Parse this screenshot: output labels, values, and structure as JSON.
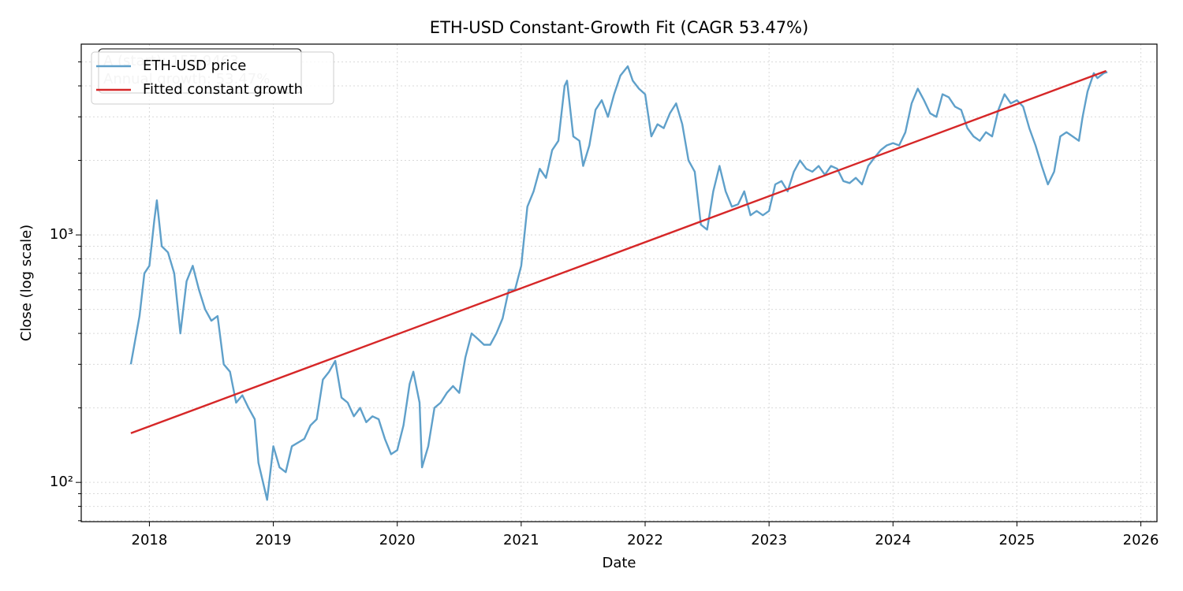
{
  "chart_data": {
    "type": "line",
    "title": "ETH-USD Constant-Growth Fit (CAGR 53.47%)",
    "xlabel": "Date",
    "ylabel": "Close (log scale)",
    "ylog": true,
    "grid": true,
    "legend": "upper left",
    "xlim": [
      2017.45,
      2026.13
    ],
    "xticks": [
      2018,
      2019,
      2020,
      2021,
      2022,
      2023,
      2024,
      2025,
      2026
    ],
    "ylim": [
      69.4,
      5900
    ],
    "yticks": [
      {
        "value": 100,
        "label": "10²"
      },
      {
        "value": 1000,
        "label": "10³"
      }
    ],
    "yminorticks": [
      70,
      80,
      90,
      200,
      300,
      400,
      500,
      600,
      700,
      800,
      900,
      2000,
      3000,
      4000,
      5000
    ],
    "annotations": [
      "A (start): 157.9463",
      "Annual growth: 53.47%"
    ],
    "series": [
      {
        "name": "ETH-USD price",
        "color": "#5fa0ca",
        "x": [
          2017.85,
          2017.92,
          2017.96,
          2018.0,
          2018.04,
          2018.06,
          2018.1,
          2018.15,
          2018.2,
          2018.25,
          2018.3,
          2018.35,
          2018.4,
          2018.45,
          2018.5,
          2018.55,
          2018.6,
          2018.65,
          2018.7,
          2018.75,
          2018.8,
          2018.85,
          2018.88,
          2018.95,
          2019.0,
          2019.05,
          2019.1,
          2019.15,
          2019.25,
          2019.3,
          2019.35,
          2019.4,
          2019.45,
          2019.5,
          2019.55,
          2019.6,
          2019.65,
          2019.7,
          2019.75,
          2019.8,
          2019.85,
          2019.9,
          2019.95,
          2020.0,
          2020.05,
          2020.1,
          2020.13,
          2020.18,
          2020.2,
          2020.25,
          2020.3,
          2020.35,
          2020.4,
          2020.45,
          2020.5,
          2020.55,
          2020.6,
          2020.65,
          2020.7,
          2020.75,
          2020.8,
          2020.85,
          2020.9,
          2020.95,
          2021.0,
          2021.05,
          2021.1,
          2021.15,
          2021.2,
          2021.25,
          2021.3,
          2021.35,
          2021.37,
          2021.42,
          2021.47,
          2021.5,
          2021.55,
          2021.6,
          2021.65,
          2021.7,
          2021.75,
          2021.8,
          2021.86,
          2021.9,
          2021.95,
          2022.0,
          2022.05,
          2022.1,
          2022.15,
          2022.2,
          2022.25,
          2022.3,
          2022.35,
          2022.4,
          2022.45,
          2022.5,
          2022.55,
          2022.6,
          2022.65,
          2022.7,
          2022.75,
          2022.8,
          2022.85,
          2022.9,
          2022.95,
          2023.0,
          2023.05,
          2023.1,
          2023.15,
          2023.2,
          2023.25,
          2023.3,
          2023.35,
          2023.4,
          2023.45,
          2023.5,
          2023.55,
          2023.6,
          2023.65,
          2023.7,
          2023.75,
          2023.8,
          2023.85,
          2023.9,
          2023.95,
          2024.0,
          2024.05,
          2024.1,
          2024.15,
          2024.2,
          2024.25,
          2024.3,
          2024.35,
          2024.4,
          2024.45,
          2024.5,
          2024.55,
          2024.6,
          2024.65,
          2024.7,
          2024.75,
          2024.8,
          2024.85,
          2024.9,
          2024.95,
          2025.0,
          2025.05,
          2025.1,
          2025.15,
          2025.2,
          2025.25,
          2025.3,
          2025.35,
          2025.4,
          2025.45,
          2025.5,
          2025.53,
          2025.57,
          2025.62,
          2025.65,
          2025.7,
          2025.73
        ],
        "values": [
          300,
          470,
          700,
          750,
          1150,
          1380,
          900,
          850,
          700,
          400,
          650,
          750,
          600,
          500,
          450,
          470,
          300,
          280,
          210,
          225,
          200,
          180,
          120,
          85,
          140,
          115,
          110,
          140,
          150,
          170,
          180,
          260,
          280,
          310,
          220,
          210,
          185,
          200,
          175,
          185,
          180,
          150,
          130,
          135,
          170,
          250,
          280,
          210,
          115,
          140,
          200,
          210,
          230,
          245,
          230,
          320,
          400,
          380,
          360,
          360,
          400,
          460,
          600,
          600,
          750,
          1300,
          1500,
          1850,
          1700,
          2200,
          2400,
          4000,
          4200,
          2500,
          2400,
          1900,
          2300,
          3200,
          3500,
          3000,
          3700,
          4400,
          4800,
          4200,
          3900,
          3700,
          2500,
          2800,
          2700,
          3100,
          3400,
          2800,
          2000,
          1800,
          1100,
          1050,
          1500,
          1900,
          1500,
          1300,
          1330,
          1500,
          1200,
          1250,
          1200,
          1250,
          1600,
          1650,
          1500,
          1800,
          2000,
          1850,
          1800,
          1900,
          1750,
          1900,
          1850,
          1650,
          1620,
          1700,
          1600,
          1900,
          2050,
          2200,
          2300,
          2350,
          2300,
          2600,
          3400,
          3900,
          3500,
          3100,
          3000,
          3700,
          3600,
          3300,
          3200,
          2700,
          2500,
          2400,
          2600,
          2500,
          3200,
          3700,
          3400,
          3500,
          3300,
          2700,
          2300,
          1900,
          1600,
          1800,
          2500,
          2600,
          2500,
          2400,
          3000,
          3800,
          4500,
          4300,
          4500,
          4550
        ]
      },
      {
        "name": "Fitted constant growth",
        "color": "#d62728",
        "x": [
          2017.85,
          2025.72
        ],
        "values": [
          157.95,
          4597
        ]
      }
    ]
  }
}
